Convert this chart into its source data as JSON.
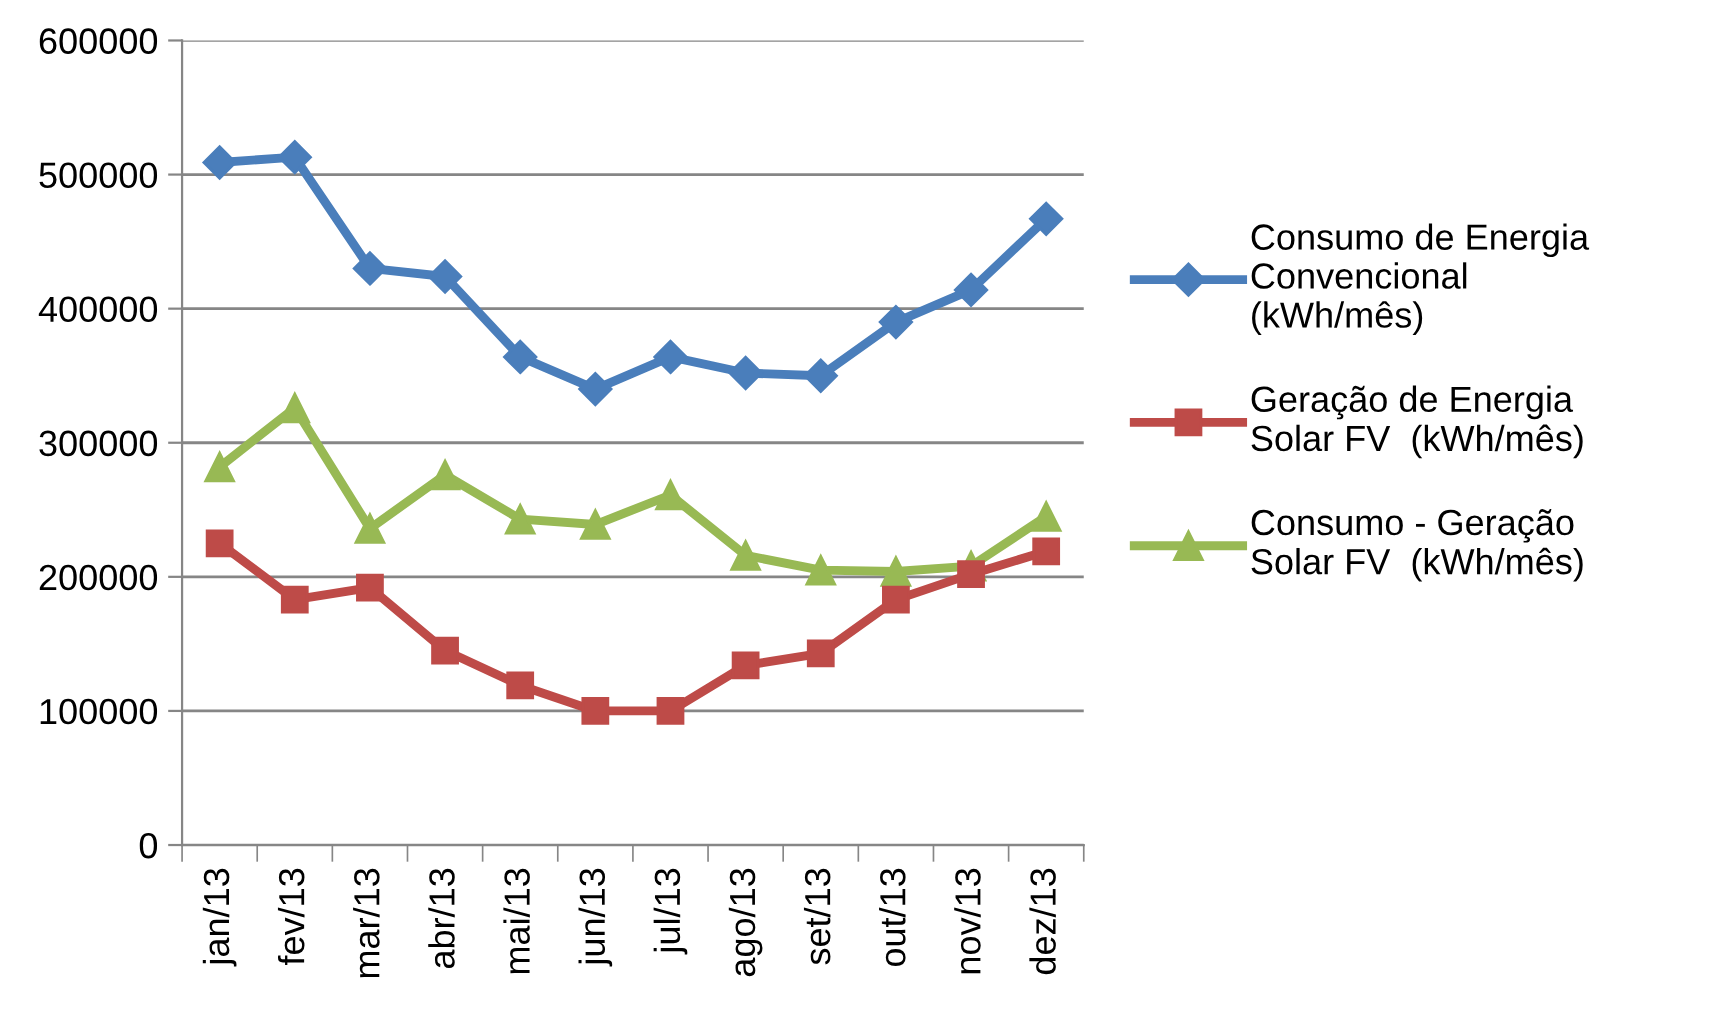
{
  "chart_data": {
    "type": "line",
    "categories": [
      "jan/13",
      "fev/13",
      "mar/13",
      "abr/13",
      "mai/13",
      "jun/13",
      "jul/13",
      "ago/13",
      "set/13",
      "out/13",
      "nov/13",
      "dez/13"
    ],
    "series": [
      {
        "name": "Consumo de Energia\nConvencional\n(kWh/mês)",
        "color": "#4a7ebb",
        "marker": "diamond",
        "values": [
          509000,
          513000,
          430000,
          424000,
          364000,
          340000,
          364000,
          352000,
          350000,
          390000,
          414000,
          467000
        ]
      },
      {
        "name": "Geração de Energia\nSolar FV  (kWh/mês)",
        "color": "#be4b48",
        "marker": "square",
        "values": [
          225000,
          183000,
          192000,
          145000,
          119000,
          100000,
          100000,
          134000,
          143000,
          183000,
          202000,
          219000
        ]
      },
      {
        "name": "Consumo - Geração\nSolar FV  (kWh/mês)",
        "color": "#98b954",
        "marker": "triangle",
        "values": [
          282000,
          326000,
          236000,
          276000,
          243000,
          239000,
          261000,
          216000,
          205000,
          204000,
          208000,
          245000
        ]
      }
    ],
    "ylim": [
      0,
      600000
    ],
    "yticks": [
      0,
      100000,
      200000,
      300000,
      400000,
      500000,
      600000
    ],
    "grid": "y",
    "legend": "right",
    "line_style": "solid"
  }
}
